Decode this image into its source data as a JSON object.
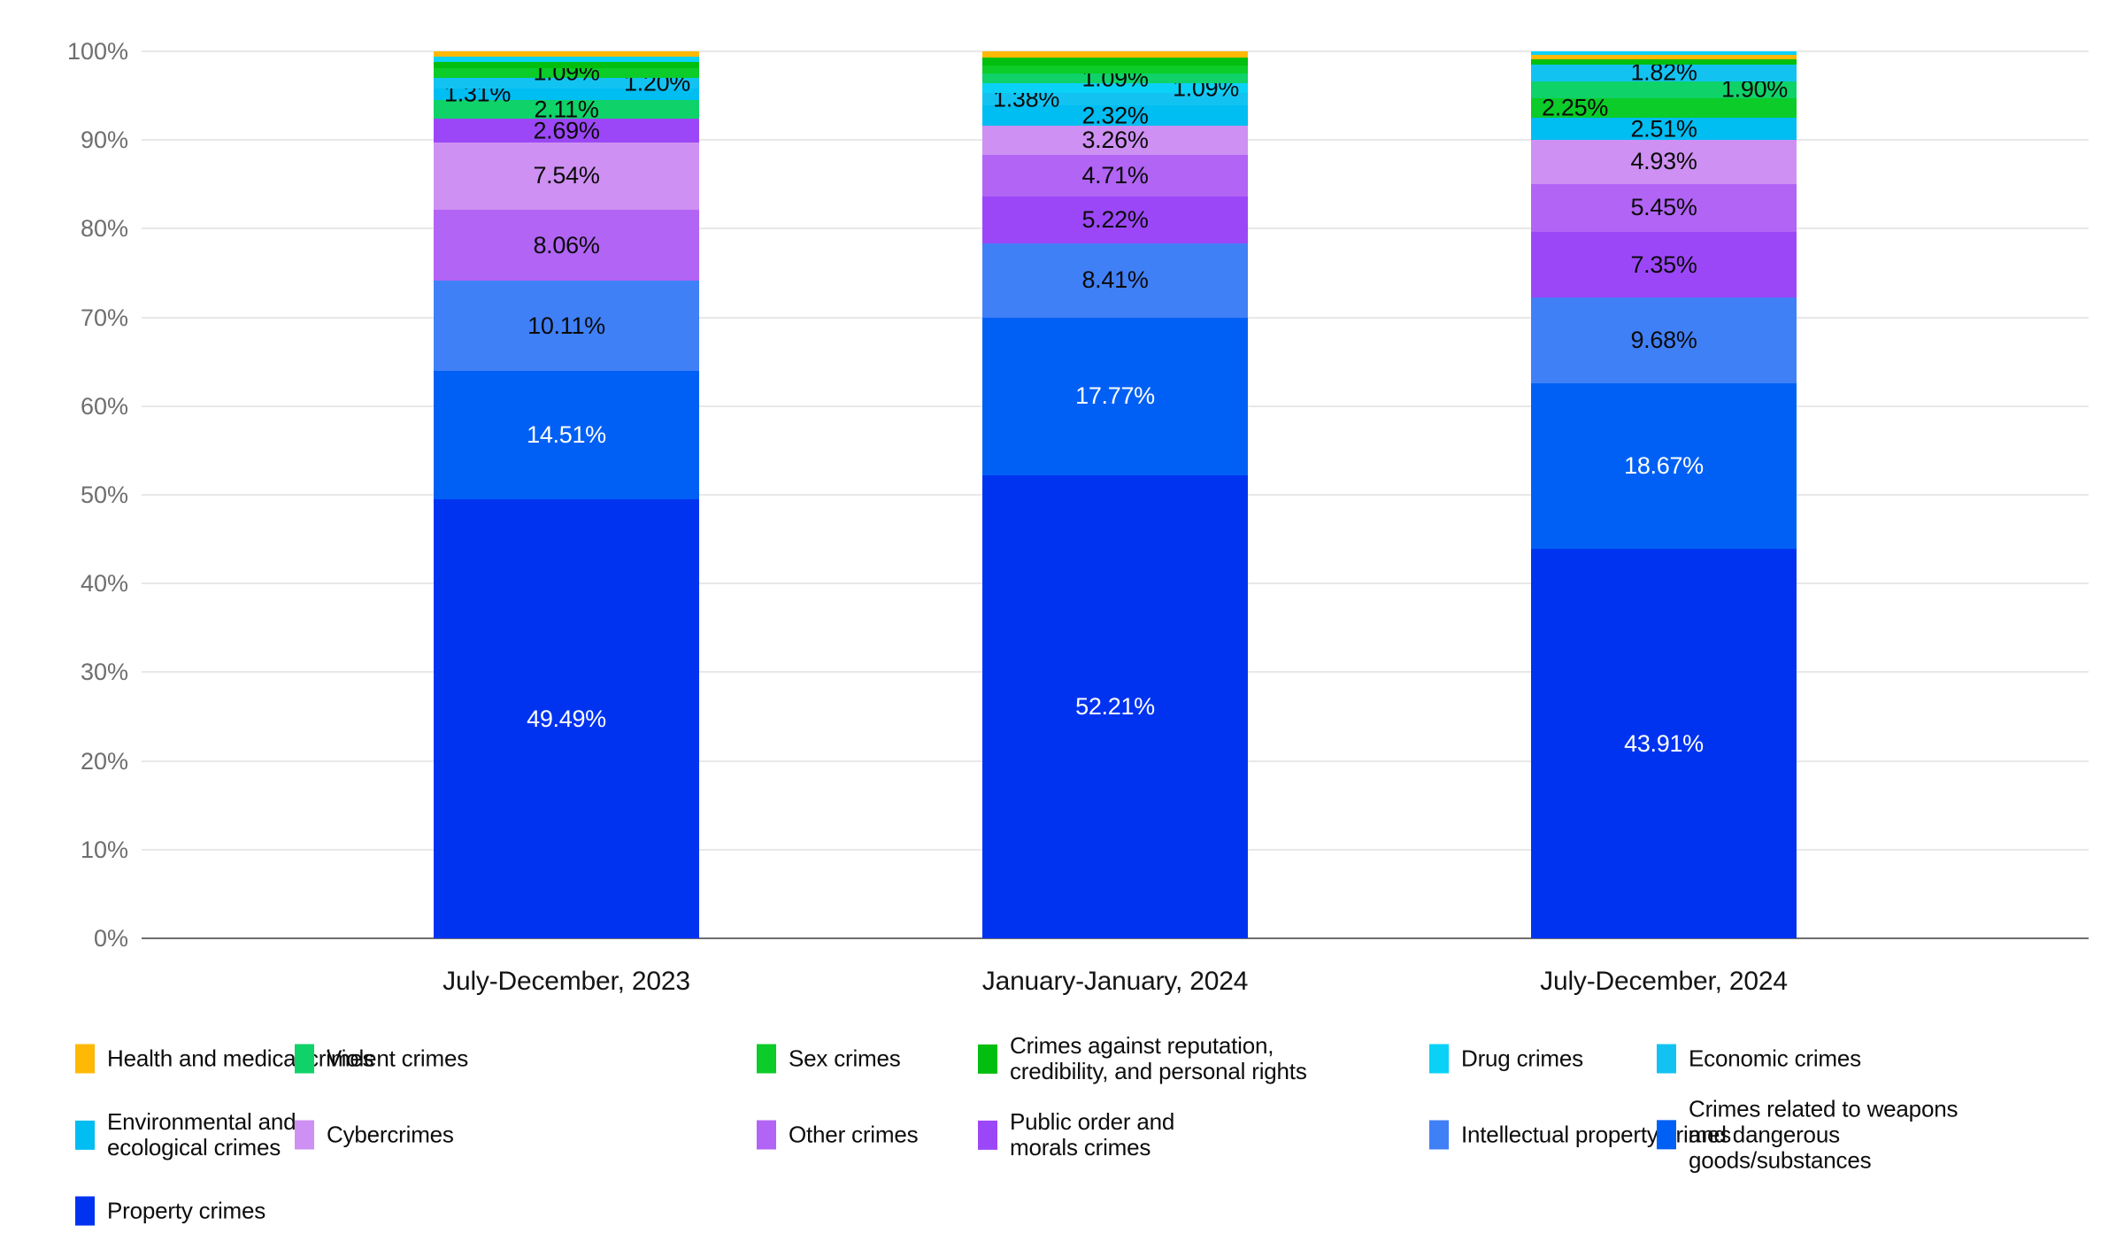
{
  "chart_data": {
    "type": "bar",
    "subtype": "stacked-100-percent",
    "title": "",
    "xlabel": "",
    "ylabel": "",
    "ylim": [
      0,
      100
    ],
    "grid": "horizontal",
    "y_ticks": [
      "0%",
      "10%",
      "20%",
      "30%",
      "40%",
      "50%",
      "60%",
      "70%",
      "80%",
      "90%",
      "100%"
    ],
    "x_categories": [
      "July-December, 2023",
      "January-January, 2024",
      "July-December, 2024"
    ],
    "colors": {
      "health": "#FFB805",
      "violent": "#0FD269",
      "sex": "#0BCC29",
      "reputation": "#02BE0E",
      "drug": "#0AD2F7",
      "economic": "#12C3F2",
      "environmental": "#00BDF2",
      "cyber": "#CE90F2",
      "other": "#B264F5",
      "public_order": "#9C47F7",
      "intellectual": "#4080F7",
      "weapons": "#0060F5",
      "property": "#0033F0"
    },
    "series": [
      {
        "key": "health",
        "name": "Health and medical crimes",
        "values": [
          0.62,
          0.74,
          0.52
        ]
      },
      {
        "key": "violent",
        "name": "Violent crimes",
        "values": [
          2.11,
          1.09,
          1.9
        ]
      },
      {
        "key": "sex",
        "name": "Sex crimes",
        "values": [
          1.09,
          0.95,
          2.25
        ]
      },
      {
        "key": "reputation",
        "name": "Crimes against reputation, credibility, and personal rights",
        "values": [
          0.65,
          0.85,
          0.59
        ]
      },
      {
        "key": "drug",
        "name": "Drug crimes",
        "values": [
          0.62,
          1.09,
          0.42
        ]
      },
      {
        "key": "economic",
        "name": "Economic crimes",
        "values": [
          1.2,
          1.38,
          1.82
        ]
      },
      {
        "key": "environmental",
        "name": "Environmental and ecological crimes",
        "values": [
          1.31,
          2.32,
          2.51
        ]
      },
      {
        "key": "cyber",
        "name": "Cybercrimes",
        "values": [
          7.54,
          3.26,
          4.93
        ]
      },
      {
        "key": "other",
        "name": "Other crimes",
        "values": [
          8.06,
          4.71,
          5.45
        ]
      },
      {
        "key": "public_order",
        "name": "Public order and morals crimes",
        "values": [
          2.69,
          5.22,
          7.35
        ]
      },
      {
        "key": "intellectual",
        "name": "Intellectual property crimes",
        "values": [
          10.11,
          8.41,
          9.68
        ]
      },
      {
        "key": "weapons",
        "name": "Crimes related to weapons and dangerous goods/substances",
        "values": [
          14.51,
          17.77,
          18.67
        ]
      },
      {
        "key": "property",
        "name": "Property crimes",
        "values": [
          49.49,
          52.21,
          43.91
        ]
      }
    ],
    "bars": [
      {
        "x_label": "July-December, 2023",
        "segments": [
          {
            "category": "property",
            "value": 49.49,
            "label": "49.49%",
            "placement": "inside",
            "text_color": "#ffffff"
          },
          {
            "category": "weapons",
            "value": 14.51,
            "label": "14.51%",
            "placement": "inside",
            "text_color": "#ffffff"
          },
          {
            "category": "intellectual",
            "value": 10.11,
            "label": "10.11%",
            "placement": "inside",
            "text_color": "#0a0a0a"
          },
          {
            "category": "other",
            "value": 8.06,
            "label": "8.06%",
            "placement": "inside",
            "text_color": "#0a0a0a"
          },
          {
            "category": "cyber",
            "value": 7.54,
            "label": "7.54%",
            "placement": "inside",
            "text_color": "#0a0a0a"
          },
          {
            "category": "public_order",
            "value": 2.69,
            "label": "2.69%",
            "placement": "center"
          },
          {
            "category": "violent",
            "value": 2.11,
            "label": "2.11%",
            "placement": "center"
          },
          {
            "category": "environmental",
            "value": 1.31,
            "label": "1.31%",
            "placement": "left"
          },
          {
            "category": "economic",
            "value": 1.2,
            "label": "1.20%",
            "placement": "right"
          },
          {
            "category": "sex",
            "value": 1.09,
            "label": "1.09%",
            "placement": "center"
          },
          {
            "category": "reputation",
            "value": 0.65,
            "label": null
          },
          {
            "category": "drug",
            "value": 0.62,
            "label": null
          },
          {
            "category": "health",
            "value": 0.62,
            "label": null
          }
        ]
      },
      {
        "x_label": "January-January, 2024",
        "segments": [
          {
            "category": "property",
            "value": 52.21,
            "label": "52.21%",
            "placement": "inside",
            "text_color": "#ffffff"
          },
          {
            "category": "weapons",
            "value": 17.77,
            "label": "17.77%",
            "placement": "inside",
            "text_color": "#ffffff"
          },
          {
            "category": "intellectual",
            "value": 8.41,
            "label": "8.41%",
            "placement": "inside",
            "text_color": "#0a0a0a"
          },
          {
            "category": "public_order",
            "value": 5.22,
            "label": "5.22%",
            "placement": "inside",
            "text_color": "#0a0a0a"
          },
          {
            "category": "other",
            "value": 4.71,
            "label": "4.71%",
            "placement": "inside",
            "text_color": "#0a0a0a"
          },
          {
            "category": "cyber",
            "value": 3.26,
            "label": "3.26%",
            "placement": "inside",
            "text_color": "#0a0a0a"
          },
          {
            "category": "environmental",
            "value": 2.32,
            "label": "2.32%",
            "placement": "center"
          },
          {
            "category": "economic",
            "value": 1.38,
            "label": "1.38%",
            "placement": "left"
          },
          {
            "category": "drug",
            "value": 1.09,
            "label": "1.09%",
            "placement": "right"
          },
          {
            "category": "violent",
            "value": 1.09,
            "label": "1.09%",
            "placement": "center"
          },
          {
            "category": "sex",
            "value": 0.95,
            "label": null
          },
          {
            "category": "reputation",
            "value": 0.85,
            "label": null
          },
          {
            "category": "health",
            "value": 0.74,
            "label": null
          }
        ]
      },
      {
        "x_label": "July-December, 2024",
        "segments": [
          {
            "category": "property",
            "value": 43.91,
            "label": "43.91%",
            "placement": "inside",
            "text_color": "#ffffff"
          },
          {
            "category": "weapons",
            "value": 18.67,
            "label": "18.67%",
            "placement": "inside",
            "text_color": "#ffffff"
          },
          {
            "category": "intellectual",
            "value": 9.68,
            "label": "9.68%",
            "placement": "inside",
            "text_color": "#0a0a0a"
          },
          {
            "category": "public_order",
            "value": 7.35,
            "label": "7.35%",
            "placement": "inside",
            "text_color": "#0a0a0a"
          },
          {
            "category": "other",
            "value": 5.45,
            "label": "5.45%",
            "placement": "inside",
            "text_color": "#0a0a0a"
          },
          {
            "category": "cyber",
            "value": 4.93,
            "label": "4.93%",
            "placement": "inside",
            "text_color": "#0a0a0a"
          },
          {
            "category": "environmental",
            "value": 2.51,
            "label": "2.51%",
            "placement": "center"
          },
          {
            "category": "sex",
            "value": 2.25,
            "label": "2.25%",
            "placement": "left"
          },
          {
            "category": "violent",
            "value": 1.9,
            "label": "1.90%",
            "placement": "right"
          },
          {
            "category": "economic",
            "value": 1.82,
            "label": "1.82%",
            "placement": "center"
          },
          {
            "category": "reputation",
            "value": 0.59,
            "label": null
          },
          {
            "category": "health",
            "value": 0.52,
            "label": null
          },
          {
            "category": "drug",
            "value": 0.42,
            "label": null
          }
        ]
      }
    ],
    "legend": {
      "position": "bottom",
      "items": [
        {
          "key": "health",
          "label": "Health and medical crimes"
        },
        {
          "key": "violent",
          "label": "Violent crimes"
        },
        {
          "key": "sex",
          "label": "Sex crimes"
        },
        {
          "key": "reputation",
          "label": "Crimes against reputation, credibility, and personal rights"
        },
        {
          "key": "drug",
          "label": "Drug crimes"
        },
        {
          "key": "economic",
          "label": "Economic crimes"
        },
        {
          "key": "environmental",
          "label": "Environmental and ecological crimes"
        },
        {
          "key": "cyber",
          "label": "Cybercrimes"
        },
        {
          "key": "other",
          "label": "Other crimes"
        },
        {
          "key": "public_order",
          "label": "Public order and morals crimes"
        },
        {
          "key": "intellectual",
          "label": "Intellectual property crimes"
        },
        {
          "key": "weapons",
          "label": "Crimes related to weapons and dangerous goods/substances"
        },
        {
          "key": "property",
          "label": "Property crimes"
        }
      ]
    }
  }
}
